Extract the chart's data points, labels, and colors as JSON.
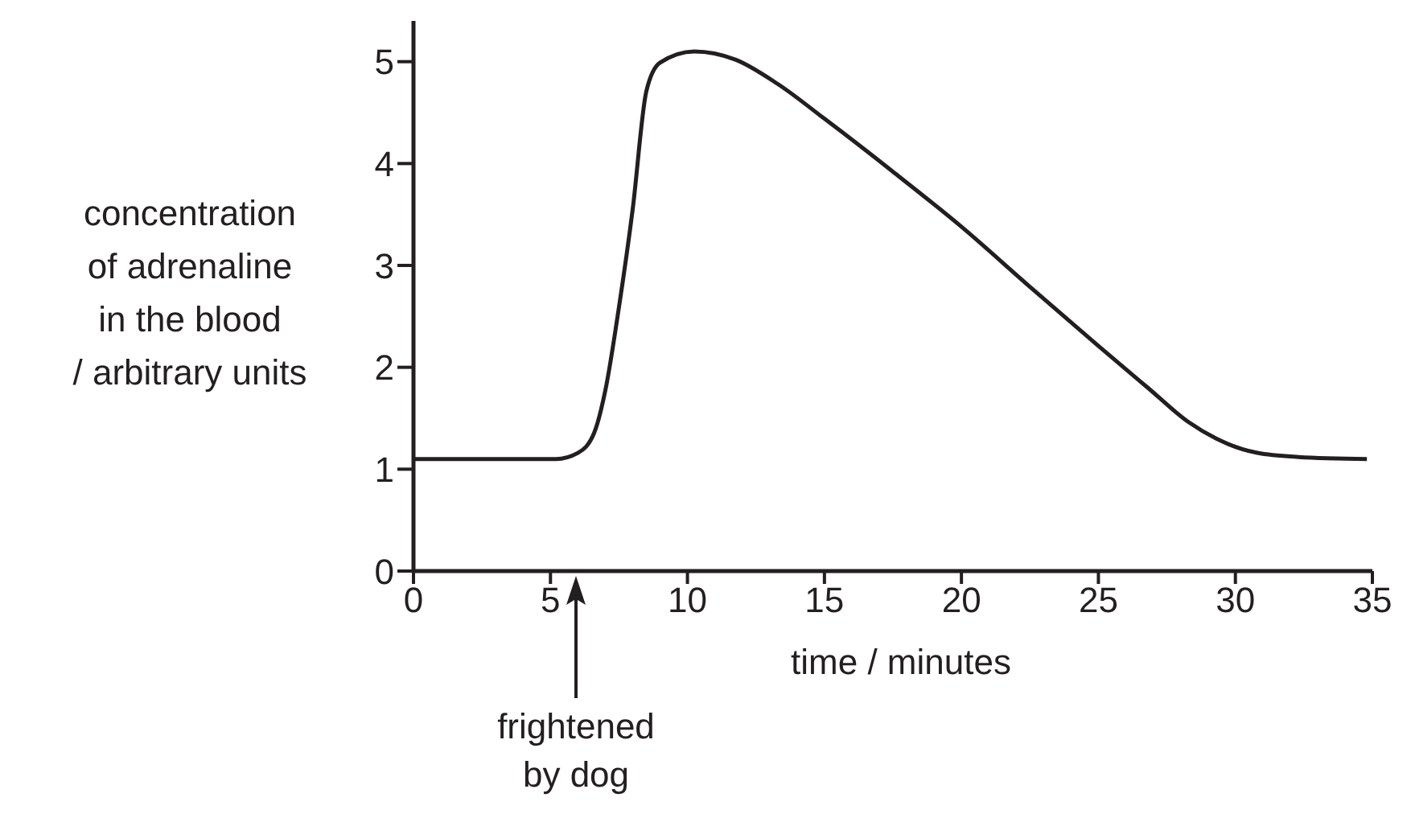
{
  "chart_data": {
    "type": "line",
    "xlabel": "time / minutes",
    "ylabel": "concentration\nof adrenaline\nin the blood\n/ arbitrary units",
    "x": [
      0,
      5.2,
      6,
      6.6,
      7,
      7.5,
      8,
      8.5,
      9,
      10.25,
      11.75,
      13.3,
      15,
      17.5,
      20,
      22.5,
      25,
      26.8,
      28.3,
      29.3,
      30.8,
      32.3,
      34.8
    ],
    "series": [
      {
        "color": "#231f20",
        "values": [
          1.1,
          1.1,
          1.16,
          1.36,
          1.77,
          2.59,
          3.55,
          4.71,
          4.99,
          5.1,
          5.02,
          4.78,
          4.44,
          3.92,
          3.38,
          2.79,
          2.21,
          1.8,
          1.46,
          1.3,
          1.16,
          1.12,
          1.1
        ]
      }
    ],
    "xlim": [
      0,
      35
    ],
    "xticks": [
      0,
      5,
      10,
      15,
      20,
      25,
      30,
      35
    ],
    "ylim": [
      0,
      5.4
    ],
    "yticks": [
      0,
      1,
      2,
      3,
      4,
      5
    ],
    "annotations": [
      "frightened by dog"
    ],
    "grid": false,
    "legend": false,
    "marker": "none"
  }
}
